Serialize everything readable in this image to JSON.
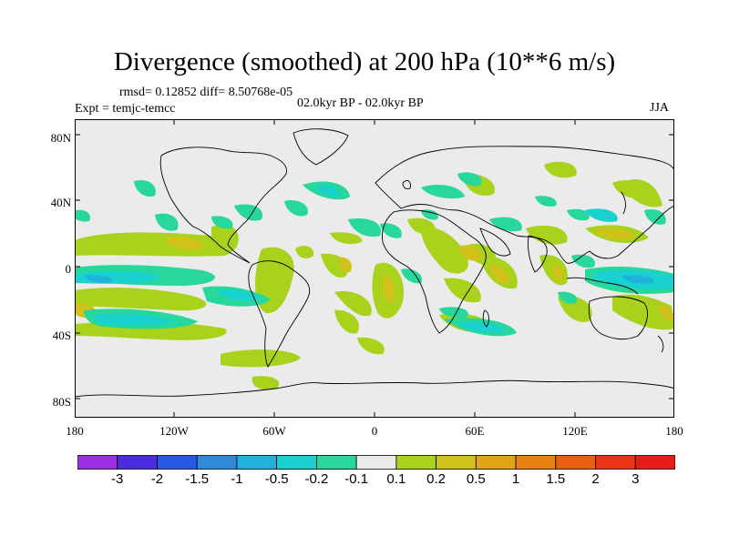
{
  "title": "Divergence (smoothed) at 200 hPa (10**6 m/s)",
  "stats": "rmsd= 0.12852 diff= 8.50768e-05",
  "experiment": "Expt = temjc-temcc",
  "period": "02.0kyr BP - 02.0kyr BP",
  "season": "JJA",
  "lat_labels": [
    "80N",
    "40N",
    "0",
    "40S",
    "80S"
  ],
  "lon_labels": [
    "180",
    "120W",
    "60W",
    "0",
    "60E",
    "120E",
    "180"
  ],
  "colorbar": {
    "labels": [
      "-3",
      "-2",
      "-1.5",
      "-1",
      "-0.5",
      "-0.2",
      "-0.1",
      "0.1",
      "0.2",
      "0.5",
      "1",
      "1.5",
      "2",
      "3"
    ],
    "colors": [
      "#9a2fe6",
      "#4b2bdf",
      "#2a59e8",
      "#2f8ad8",
      "#1fb2dc",
      "#19d2cf",
      "#27d79c",
      "#ebebeb",
      "#a9d21d",
      "#d1c21a",
      "#dfa513",
      "#e88312",
      "#ec5f11",
      "#ee3316",
      "#e81b1b"
    ]
  },
  "colors": {
    "ocean": "#ebebeb",
    "coast": "#000000",
    "pos_small": "#a9d21d",
    "pos_mid": "#d1c21a",
    "neg_small": "#27d79c",
    "neg_mid": "#19d2cf",
    "neg_large": "#1fb2dc"
  }
}
